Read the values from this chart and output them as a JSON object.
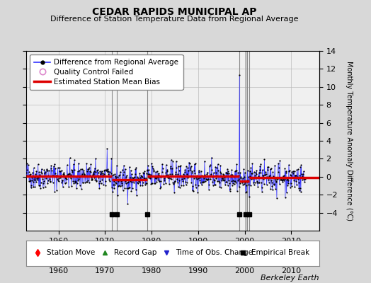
{
  "title": "CEDAR RAPIDS MUNICIPAL AP",
  "subtitle": "Difference of Station Temperature Data from Regional Average",
  "ylabel": "Monthly Temperature Anomaly Difference (°C)",
  "xlabel_credit": "Berkeley Earth",
  "xlim": [
    1953,
    2016
  ],
  "ylim": [
    -6,
    14
  ],
  "yticks": [
    -4,
    -2,
    0,
    2,
    4,
    6,
    8,
    10,
    12,
    14
  ],
  "xticks": [
    1960,
    1970,
    1980,
    1990,
    2000,
    2010
  ],
  "bg_color": "#d8d8d8",
  "plot_bg_color": "#f0f0f0",
  "line_color": "#3333ff",
  "dot_color": "#000000",
  "bias_color": "#dd0000",
  "vertical_lines_x": [
    1971.5,
    1972.5,
    1979.0,
    1998.8,
    2000.2,
    2000.5,
    2001.0
  ],
  "break_markers_x": [
    1971.5,
    1972.5,
    1979.0,
    1998.8,
    2000.2,
    2001.0
  ],
  "break_markers_y": -4.2,
  "spike_x": 1998.9,
  "spike_y": 11.3,
  "seed": 42,
  "n_points": 720,
  "start_year": 1953.0,
  "bias_segments": [
    {
      "x": [
        1953.0,
        1971.5
      ],
      "y": [
        0.1,
        0.1
      ]
    },
    {
      "x": [
        1971.5,
        1979.0
      ],
      "y": [
        -0.35,
        -0.35
      ]
    },
    {
      "x": [
        1979.0,
        1998.8
      ],
      "y": [
        0.05,
        0.05
      ]
    },
    {
      "x": [
        1998.8,
        2001.0
      ],
      "y": [
        -0.45,
        -0.45
      ]
    },
    {
      "x": [
        2001.0,
        2016.0
      ],
      "y": [
        -0.1,
        -0.1
      ]
    }
  ],
  "title_fontsize": 10,
  "subtitle_fontsize": 8,
  "axis_fontsize": 8,
  "ylabel_fontsize": 7,
  "legend_fontsize": 7.5,
  "credit_fontsize": 8
}
